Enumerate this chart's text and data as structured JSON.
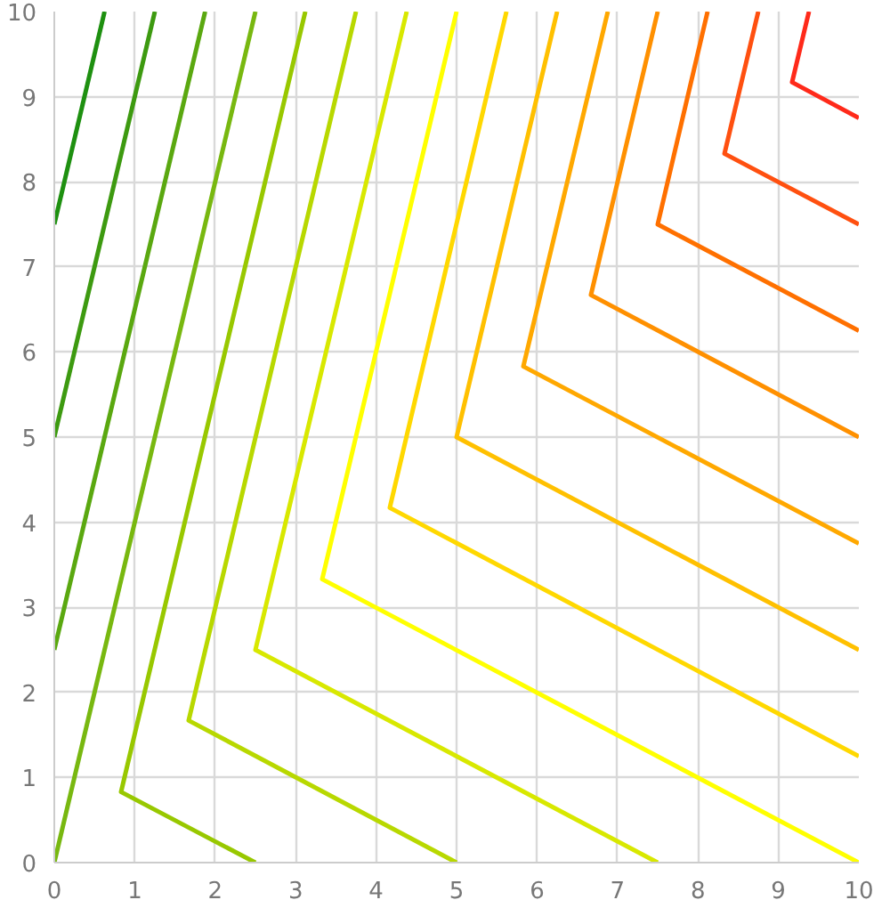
{
  "chart_data": {
    "type": "line",
    "xlim": [
      0,
      10
    ],
    "ylim": [
      0,
      10
    ],
    "xticks": [
      0,
      1,
      2,
      3,
      4,
      5,
      6,
      7,
      8,
      9,
      10
    ],
    "yticks": [
      0,
      1,
      2,
      3,
      4,
      5,
      6,
      7,
      8,
      9,
      10
    ],
    "grid": true,
    "marker": "none",
    "line_style": "solid",
    "series": [
      {
        "color": "#1e9010",
        "x": [
          0,
          0.625
        ],
        "values": [
          7.5,
          10
        ]
      },
      {
        "color": "#3d9a10",
        "x": [
          0,
          1.25
        ],
        "values": [
          5,
          10
        ]
      },
      {
        "color": "#5aa810",
        "x": [
          0,
          1.875
        ],
        "values": [
          2.5,
          10
        ]
      },
      {
        "color": "#78b810",
        "x": [
          0,
          2.5
        ],
        "values": [
          0,
          10
        ]
      },
      {
        "color": "#98c800",
        "x": [
          2.5,
          0.83,
          3.12
        ],
        "values": [
          0,
          0.83,
          10
        ]
      },
      {
        "color": "#b8d800",
        "x": [
          5,
          1.67,
          3.75
        ],
        "values": [
          0,
          1.67,
          10
        ]
      },
      {
        "color": "#d8e800",
        "x": [
          7.5,
          2.5,
          4.38
        ],
        "values": [
          0,
          2.5,
          10
        ]
      },
      {
        "color": "#ffff00",
        "x": [
          10,
          3.33,
          5
        ],
        "values": [
          0,
          3.33,
          10
        ]
      },
      {
        "color": "#ffd800",
        "x": [
          10,
          4.17,
          5.62
        ],
        "values": [
          1.25,
          4.17,
          10
        ]
      },
      {
        "color": "#ffc000",
        "x": [
          10,
          5,
          6.25
        ],
        "values": [
          2.5,
          5,
          10
        ]
      },
      {
        "color": "#ffa800",
        "x": [
          10,
          5.83,
          6.88
        ],
        "values": [
          3.75,
          5.83,
          10
        ]
      },
      {
        "color": "#ff9000",
        "x": [
          10,
          6.67,
          7.5
        ],
        "values": [
          5,
          6.67,
          10
        ]
      },
      {
        "color": "#ff7000",
        "x": [
          10,
          7.5,
          8.12
        ],
        "values": [
          6.25,
          7.5,
          10
        ]
      },
      {
        "color": "#ff5010",
        "x": [
          10,
          8.33,
          8.75
        ],
        "values": [
          7.5,
          8.33,
          10
        ]
      },
      {
        "color": "#ff2a1a",
        "x": [
          10,
          9.17,
          9.38
        ],
        "values": [
          8.75,
          9.17,
          10
        ]
      }
    ]
  }
}
